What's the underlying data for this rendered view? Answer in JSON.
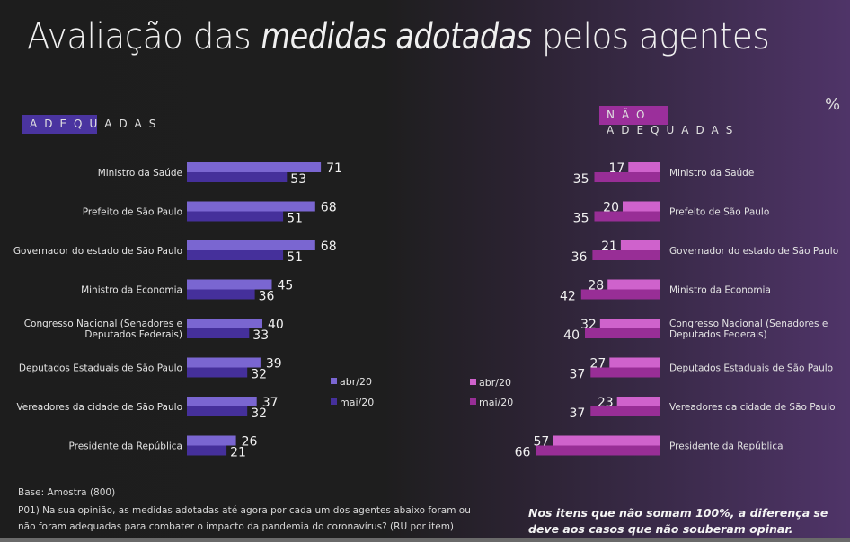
{
  "title": {
    "part1": "Avaliação das ",
    "part2_italic": "medidas adotadas",
    "part3": " pelos agentes"
  },
  "unit_label": "%",
  "colors": {
    "adequadas_abr": "#7a66d1",
    "adequadas_mai": "#45309b",
    "nao_adequadas_abr": "#cf62cc",
    "nao_adequadas_mai": "#982e96",
    "header_left_box": "#4a34a0",
    "header_right_box": "#9b2f9b"
  },
  "headers": {
    "left": "ADEQUADAS",
    "right_line1": "NÃO",
    "right_line2": "ADEQUADAS"
  },
  "chart_data": [
    {
      "type": "bar",
      "orientation": "horizontal",
      "title": "ADEQUADAS",
      "xlabel": "",
      "ylabel": "",
      "unit": "%",
      "xlim": [
        0,
        100
      ],
      "grid": false,
      "legend_position": "right",
      "categories": [
        [
          "Ministro da Saúde"
        ],
        [
          "Prefeito de São Paulo"
        ],
        [
          "Governador do estado de São Paulo"
        ],
        [
          "Ministro da Economia"
        ],
        [
          "Congresso Nacional (Senadores e",
          "Deputados Federais)"
        ],
        [
          "Deputados Estaduais de São Paulo"
        ],
        [
          "Vereadores da cidade de São Paulo"
        ],
        [
          "Presidente da República"
        ]
      ],
      "series": [
        {
          "name": "abr/20",
          "values": [
            71,
            68,
            68,
            45,
            40,
            39,
            37,
            26
          ]
        },
        {
          "name": "mai/20",
          "values": [
            53,
            51,
            51,
            36,
            33,
            32,
            32,
            21
          ]
        }
      ]
    },
    {
      "type": "bar",
      "orientation": "horizontal-reversed",
      "title": "NÃO ADEQUADAS",
      "xlabel": "",
      "ylabel": "",
      "unit": "%",
      "xlim": [
        0,
        100
      ],
      "grid": false,
      "legend_position": "left",
      "categories": [
        [
          "Ministro da Saúde"
        ],
        [
          "Prefeito de São Paulo"
        ],
        [
          "Governador do estado de São Paulo"
        ],
        [
          "Ministro da Economia"
        ],
        [
          "Congresso Nacional (Senadores e",
          "Deputados Federais)"
        ],
        [
          "Deputados Estaduais de São Paulo"
        ],
        [
          "Vereadores da cidade de São Paulo"
        ],
        [
          "Presidente da República"
        ]
      ],
      "series": [
        {
          "name": "abr/20",
          "values": [
            17,
            20,
            21,
            28,
            32,
            27,
            23,
            57
          ]
        },
        {
          "name": "mai/20",
          "values": [
            35,
            35,
            36,
            42,
            40,
            37,
            37,
            66
          ]
        }
      ]
    }
  ],
  "footer": {
    "base": "Base: Amostra (800)",
    "question_line1": "P01) Na sua opinião, as medidas adotadas até agora por cada um dos agentes abaixo foram ou",
    "question_line2": "não foram adequadas para combater o impacto da pandemia do coronavírus? (RU por item)",
    "note_line1": "Nos itens que não somam 100%, a diferença se",
    "note_line2": "deve aos casos que não souberam opinar."
  }
}
